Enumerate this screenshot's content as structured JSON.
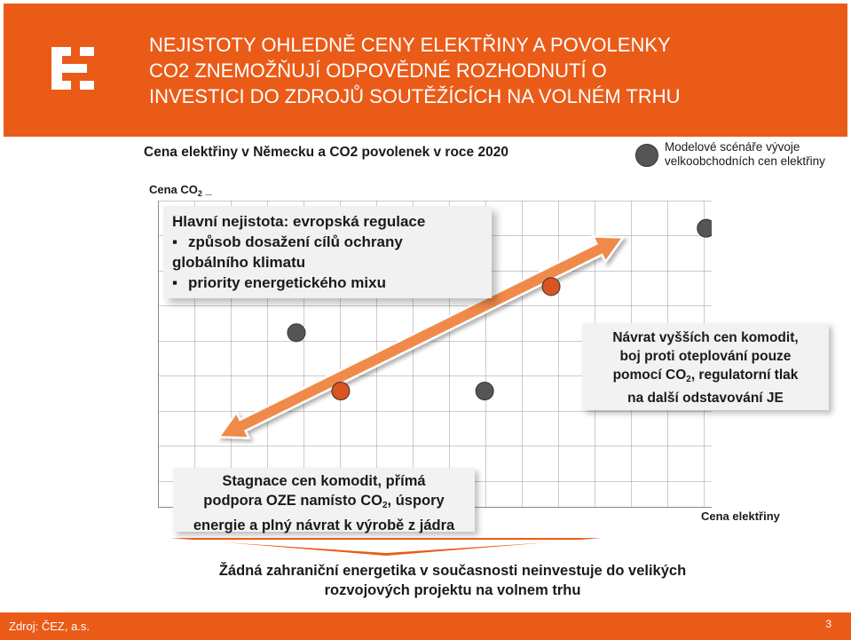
{
  "colors": {
    "brand_orange": "#ea5b18",
    "dot_gray": "#555555",
    "dot_orange": "#d9541e",
    "arrow_orange": "#f08a4b"
  },
  "header": {
    "title_lines": [
      "NEJISTOTY OHLEDNĚ CENY ELEKTŘINY A POVOLENKY",
      "CO2 ZNEMOŽŇUJÍ ODPOVĚDNÉ ROZHODNUTÍ O",
      "INVESTICI DO ZDROJŮ SOUTĚŽÍCÍCH NA VOLNÉM TRHU"
    ],
    "logo_icon": "cez-logo-icon"
  },
  "subtitle": "Cena elektřiny v Německu a CO2 povolenek v roce 2020",
  "y_axis": {
    "label_main": "Cena CO",
    "label_sub": "2"
  },
  "legend": {
    "text": "Modelové scénáře vývoje velkoobchodních cen elektřiny"
  },
  "x_axis": {
    "label": "Cena elektřiny"
  },
  "callouts": {
    "top": {
      "heading": "Hlavní nejistota: evropská regulace",
      "items": [
        "způsob dosažení cílů ochrany globálního klimatu",
        "priority energetického mixu"
      ],
      "item1_line1": "způsob dosažení cílů ochrany",
      "item1_line2": "globálního klimatu",
      "item2": "priority energetického mixu"
    },
    "right": {
      "line1": "Návrat vyšších cen komodit,",
      "line2": "boj proti oteplování pouze",
      "line3_pre": "pomocí CO",
      "line3_sub": "2",
      "line3_post": ", regulatorní tlak",
      "line4": "na další odstavování JE"
    },
    "bottom": {
      "line1": "Stagnace cen komodit, přímá",
      "line2_pre": "podpora OZE namísto CO",
      "line2_sub": "2",
      "line2_post": ", úspory",
      "line3": "energie a plný návrat k výrobě z jádra"
    }
  },
  "chart_data": {
    "type": "scatter",
    "title": "Cena elektřiny v Německu a CO2 povolenek v roce 2020",
    "xlabel": "Cena elektřiny",
    "ylabel": "Cena CO2",
    "grid": true,
    "legend_position": "top-right",
    "series": [
      {
        "name": "Modelové scénáře vývoje velkoobchodních cen elektřiny",
        "points": [
          {
            "x": 0.25,
            "y": 0.57,
            "color": "gray"
          },
          {
            "x": 0.33,
            "y": 0.38,
            "color": "orange"
          },
          {
            "x": 0.59,
            "y": 0.38,
            "color": "gray"
          },
          {
            "x": 0.71,
            "y": 0.72,
            "color": "orange"
          },
          {
            "x": 0.99,
            "y": 0.91,
            "color": "gray"
          }
        ]
      }
    ],
    "annotation": "double-headed arrow spanning the range of scenarios"
  },
  "conclusion": {
    "line1": "Žádná zahraniční energetika v současnosti neinvestuje do velikých",
    "line2": "rozvojových projektu na volnem trhu"
  },
  "footer": {
    "source": "Zdroj: ČEZ, a.s.",
    "page": "3"
  }
}
